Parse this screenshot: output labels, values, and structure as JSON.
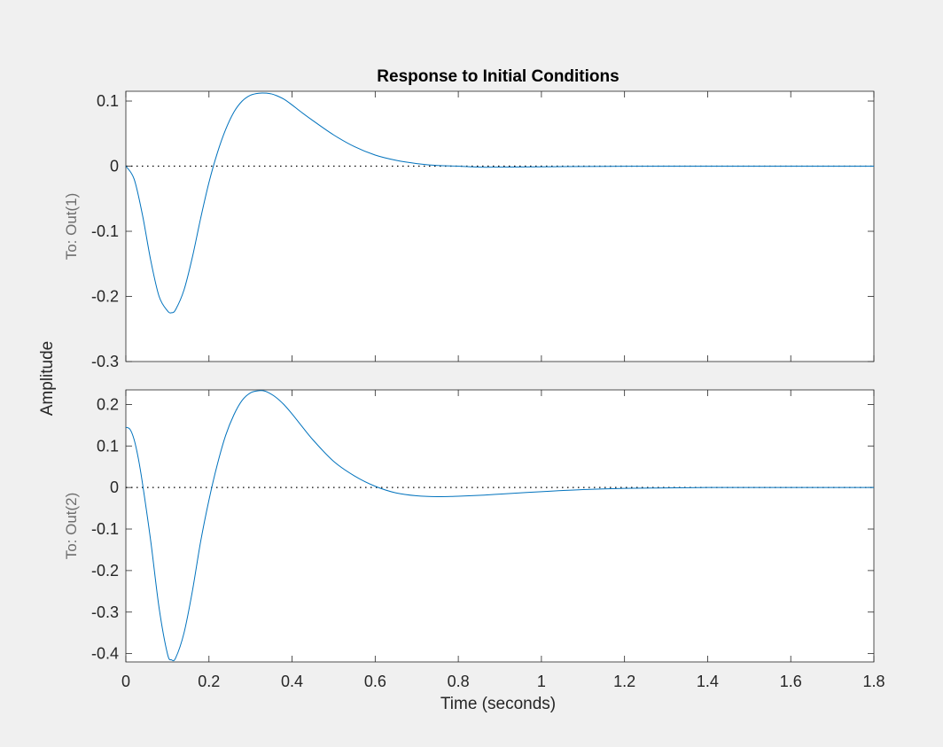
{
  "chart_data": {
    "type": "line",
    "title": "Response to Initial Conditions",
    "xlabel": "Time (seconds)",
    "ylabel": "Amplitude",
    "xlim": [
      0,
      1.8
    ],
    "x_ticks": [
      0,
      0.2,
      0.4,
      0.6,
      0.8,
      1.0,
      1.2,
      1.4,
      1.6,
      1.8
    ],
    "x_tick_labels": [
      "0",
      "0.2",
      "0.4",
      "0.6",
      "0.8",
      "1",
      "1.2",
      "1.4",
      "1.6",
      "1.8"
    ],
    "line_color": "#0072bd",
    "subplots": [
      {
        "ylabel": "To: Out(1)",
        "ylim": [
          -0.3,
          0.115
        ],
        "y_ticks": [
          -0.3,
          -0.2,
          -0.1,
          0,
          0.1
        ],
        "y_tick_labels": [
          "-0.3",
          "-0.2",
          "-0.1",
          "0",
          "0.1"
        ],
        "zero_line": true,
        "series": [
          {
            "x": [
              0,
              0.02,
              0.04,
              0.06,
              0.08,
              0.1,
              0.11,
              0.12,
              0.14,
              0.16,
              0.18,
              0.2,
              0.22,
              0.24,
              0.26,
              0.28,
              0.3,
              0.32,
              0.34,
              0.35,
              0.36,
              0.38,
              0.4,
              0.42,
              0.45,
              0.5,
              0.55,
              0.6,
              0.65,
              0.7,
              0.75,
              0.8,
              0.85,
              0.9,
              1.0,
              1.1,
              1.2,
              1.3,
              1.4,
              1.5,
              1.6,
              1.7,
              1.8
            ],
            "y": [
              0,
              -0.02,
              -0.075,
              -0.145,
              -0.2,
              -0.222,
              -0.225,
              -0.22,
              -0.19,
              -0.14,
              -0.08,
              -0.025,
              0.02,
              0.056,
              0.083,
              0.1,
              0.109,
              0.112,
              0.112,
              0.111,
              0.109,
              0.103,
              0.094,
              0.084,
              0.07,
              0.048,
              0.03,
              0.017,
              0.009,
              0.004,
              0.001,
              0.0,
              -0.0015,
              -0.0015,
              -0.001,
              -0.0005,
              -0.0002,
              0,
              0,
              0,
              0,
              0,
              0
            ]
          }
        ]
      },
      {
        "ylabel": "To: Out(2)",
        "ylim": [
          -0.42,
          0.235
        ],
        "y_ticks": [
          -0.4,
          -0.3,
          -0.2,
          -0.1,
          0,
          0.1,
          0.2
        ],
        "y_tick_labels": [
          "-0.4",
          "-0.3",
          "-0.2",
          "-0.1",
          "0",
          "0.1",
          "0.2"
        ],
        "zero_line": true,
        "series": [
          {
            "x": [
              0,
              0.01,
              0.02,
              0.03,
              0.04,
              0.06,
              0.08,
              0.1,
              0.11,
              0.12,
              0.14,
              0.16,
              0.18,
              0.2,
              0.22,
              0.24,
              0.26,
              0.28,
              0.3,
              0.32,
              0.33,
              0.34,
              0.36,
              0.38,
              0.4,
              0.42,
              0.45,
              0.5,
              0.55,
              0.6,
              0.65,
              0.7,
              0.75,
              0.8,
              0.85,
              0.9,
              1.0,
              1.1,
              1.2,
              1.3,
              1.4,
              1.5,
              1.6,
              1.7,
              1.8
            ],
            "y": [
              0.145,
              0.14,
              0.115,
              0.07,
              0.01,
              -0.13,
              -0.29,
              -0.4,
              -0.415,
              -0.41,
              -0.35,
              -0.25,
              -0.13,
              -0.03,
              0.055,
              0.125,
              0.175,
              0.21,
              0.228,
              0.233,
              0.233,
              0.23,
              0.218,
              0.2,
              0.177,
              0.152,
              0.115,
              0.063,
              0.028,
              0.003,
              -0.013,
              -0.02,
              -0.022,
              -0.021,
              -0.019,
              -0.016,
              -0.01,
              -0.005,
              -0.002,
              -0.001,
              0,
              0,
              0,
              0,
              0
            ]
          }
        ]
      }
    ]
  }
}
